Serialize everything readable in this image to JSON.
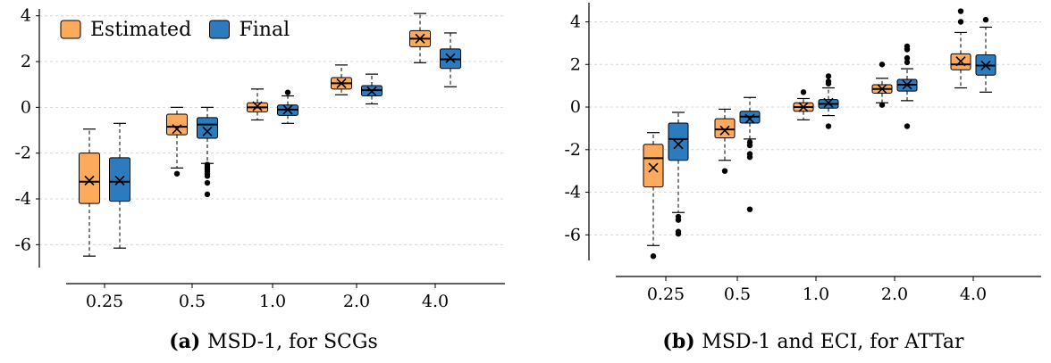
{
  "chart_data": [
    {
      "type": "box",
      "caption_tag": "(a)",
      "caption_text": "MSD-1, for SCGs",
      "categories": [
        "0.25",
        "0.5",
        "1.0",
        "2.0",
        "4.0"
      ],
      "ylim": [
        -7,
        4.3
      ],
      "yticks": [
        4,
        2,
        0,
        -2,
        -4,
        -6
      ],
      "ytick_labels": [
        "4",
        "2",
        "0",
        "-2",
        "-4",
        "-6"
      ],
      "grid": "horizontal dashed",
      "legend_position": "top-left",
      "series": [
        {
          "name": "Estimated",
          "color": "#FDAA5C",
          "boxes": [
            {
              "whisker_low": -6.5,
              "q1": -4.2,
              "median": -3.25,
              "q3": -2.0,
              "whisker_high": -0.95,
              "mean": -3.2,
              "outliers": []
            },
            {
              "whisker_low": -2.65,
              "q1": -1.2,
              "median": -0.85,
              "q3": -0.3,
              "whisker_high": 0.0,
              "mean": -0.95,
              "outliers": [
                -2.9
              ]
            },
            {
              "whisker_low": -0.55,
              "q1": -0.2,
              "median": 0.0,
              "q3": 0.2,
              "whisker_high": 0.8,
              "mean": 0.05,
              "outliers": []
            },
            {
              "whisker_low": 0.55,
              "q1": 0.8,
              "median": 1.05,
              "q3": 1.3,
              "whisker_high": 1.85,
              "mean": 1.05,
              "outliers": []
            },
            {
              "whisker_low": 1.95,
              "q1": 2.65,
              "median": 3.0,
              "q3": 3.35,
              "whisker_high": 4.1,
              "mean": 3.0,
              "outliers": []
            }
          ]
        },
        {
          "name": "Final",
          "color": "#2D7BBF",
          "boxes": [
            {
              "whisker_low": -6.15,
              "q1": -4.1,
              "median": -3.25,
              "q3": -2.2,
              "whisker_high": -0.7,
              "mean": -3.2,
              "outliers": []
            },
            {
              "whisker_low": -2.45,
              "q1": -1.35,
              "median": -0.75,
              "q3": -0.45,
              "whisker_high": 0.0,
              "mean": -1.05,
              "outliers": [
                -2.5,
                -2.6,
                -2.7,
                -2.8,
                -2.9,
                -3.0,
                -3.3,
                -3.8
              ]
            },
            {
              "whisker_low": -0.7,
              "q1": -0.35,
              "median": -0.1,
              "q3": 0.1,
              "whisker_high": 0.5,
              "mean": -0.1,
              "outliers": [
                0.65
              ]
            },
            {
              "whisker_low": 0.15,
              "q1": 0.5,
              "median": 0.75,
              "q3": 0.95,
              "whisker_high": 1.45,
              "mean": 0.7,
              "outliers": []
            },
            {
              "whisker_low": 0.9,
              "q1": 1.7,
              "median": 2.1,
              "q3": 2.55,
              "whisker_high": 3.25,
              "mean": 2.15,
              "outliers": []
            }
          ]
        }
      ]
    },
    {
      "type": "box",
      "caption_tag": "(b)",
      "caption_text": "MSD-1 and ECI, for ATTar",
      "categories": [
        "0.25",
        "0.5",
        "1.0",
        "2.0",
        "4.0"
      ],
      "ylim": [
        -7.2,
        4.9
      ],
      "yticks": [
        4,
        2,
        0,
        -2,
        -4,
        -6
      ],
      "ytick_labels": [
        "4",
        "2",
        "0",
        "-2",
        "-4",
        "-6"
      ],
      "grid": "horizontal dashed",
      "series": [
        {
          "name": "Estimated",
          "color": "#FDAA5C",
          "boxes": [
            {
              "whisker_low": -6.5,
              "q1": -3.75,
              "median": -2.4,
              "q3": -1.75,
              "whisker_high": -1.2,
              "mean": -2.85,
              "outliers": [
                -7.0
              ]
            },
            {
              "whisker_low": -2.5,
              "q1": -1.45,
              "median": -1.05,
              "q3": -0.55,
              "whisker_high": -0.1,
              "mean": -1.1,
              "outliers": [
                -3.0
              ]
            },
            {
              "whisker_low": -0.6,
              "q1": -0.2,
              "median": 0.0,
              "q3": 0.2,
              "whisker_high": 0.4,
              "mean": 0.0,
              "outliers": [
                0.7
              ]
            },
            {
              "whisker_low": 0.2,
              "q1": 0.65,
              "median": 0.85,
              "q3": 1.05,
              "whisker_high": 1.35,
              "mean": 0.85,
              "outliers": [
                0.1,
                2.0
              ]
            },
            {
              "whisker_low": 0.9,
              "q1": 1.75,
              "median": 2.0,
              "q3": 2.5,
              "whisker_high": 3.5,
              "mean": 2.15,
              "outliers": [
                4.0,
                4.5
              ]
            }
          ]
        },
        {
          "name": "Final",
          "color": "#2D7BBF",
          "boxes": [
            {
              "whisker_low": -4.95,
              "q1": -2.5,
              "median": -1.5,
              "q3": -0.75,
              "whisker_high": -0.25,
              "mean": -1.75,
              "outliers": [
                -5.15,
                -5.3,
                -5.85,
                -5.95
              ]
            },
            {
              "whisker_low": -1.5,
              "q1": -0.75,
              "median": -0.45,
              "q3": -0.2,
              "whisker_high": 0.45,
              "mean": -0.55,
              "outliers": [
                -1.65,
                -1.8,
                -2.2,
                -2.35,
                -4.8
              ]
            },
            {
              "whisker_low": -0.4,
              "q1": -0.05,
              "median": 0.15,
              "q3": 0.35,
              "whisker_high": 0.9,
              "mean": 0.2,
              "outliers": [
                -0.9,
                1.1,
                1.2,
                1.45
              ]
            },
            {
              "whisker_low": 0.3,
              "q1": 0.75,
              "median": 1.05,
              "q3": 1.3,
              "whisker_high": 1.8,
              "mean": 1.05,
              "outliers": [
                -0.9,
                2.1,
                2.3,
                2.7,
                2.85
              ]
            },
            {
              "whisker_low": 0.7,
              "q1": 1.5,
              "median": 1.95,
              "q3": 2.45,
              "whisker_high": 3.75,
              "mean": 1.95,
              "outliers": [
                4.1
              ]
            }
          ]
        }
      ]
    }
  ]
}
